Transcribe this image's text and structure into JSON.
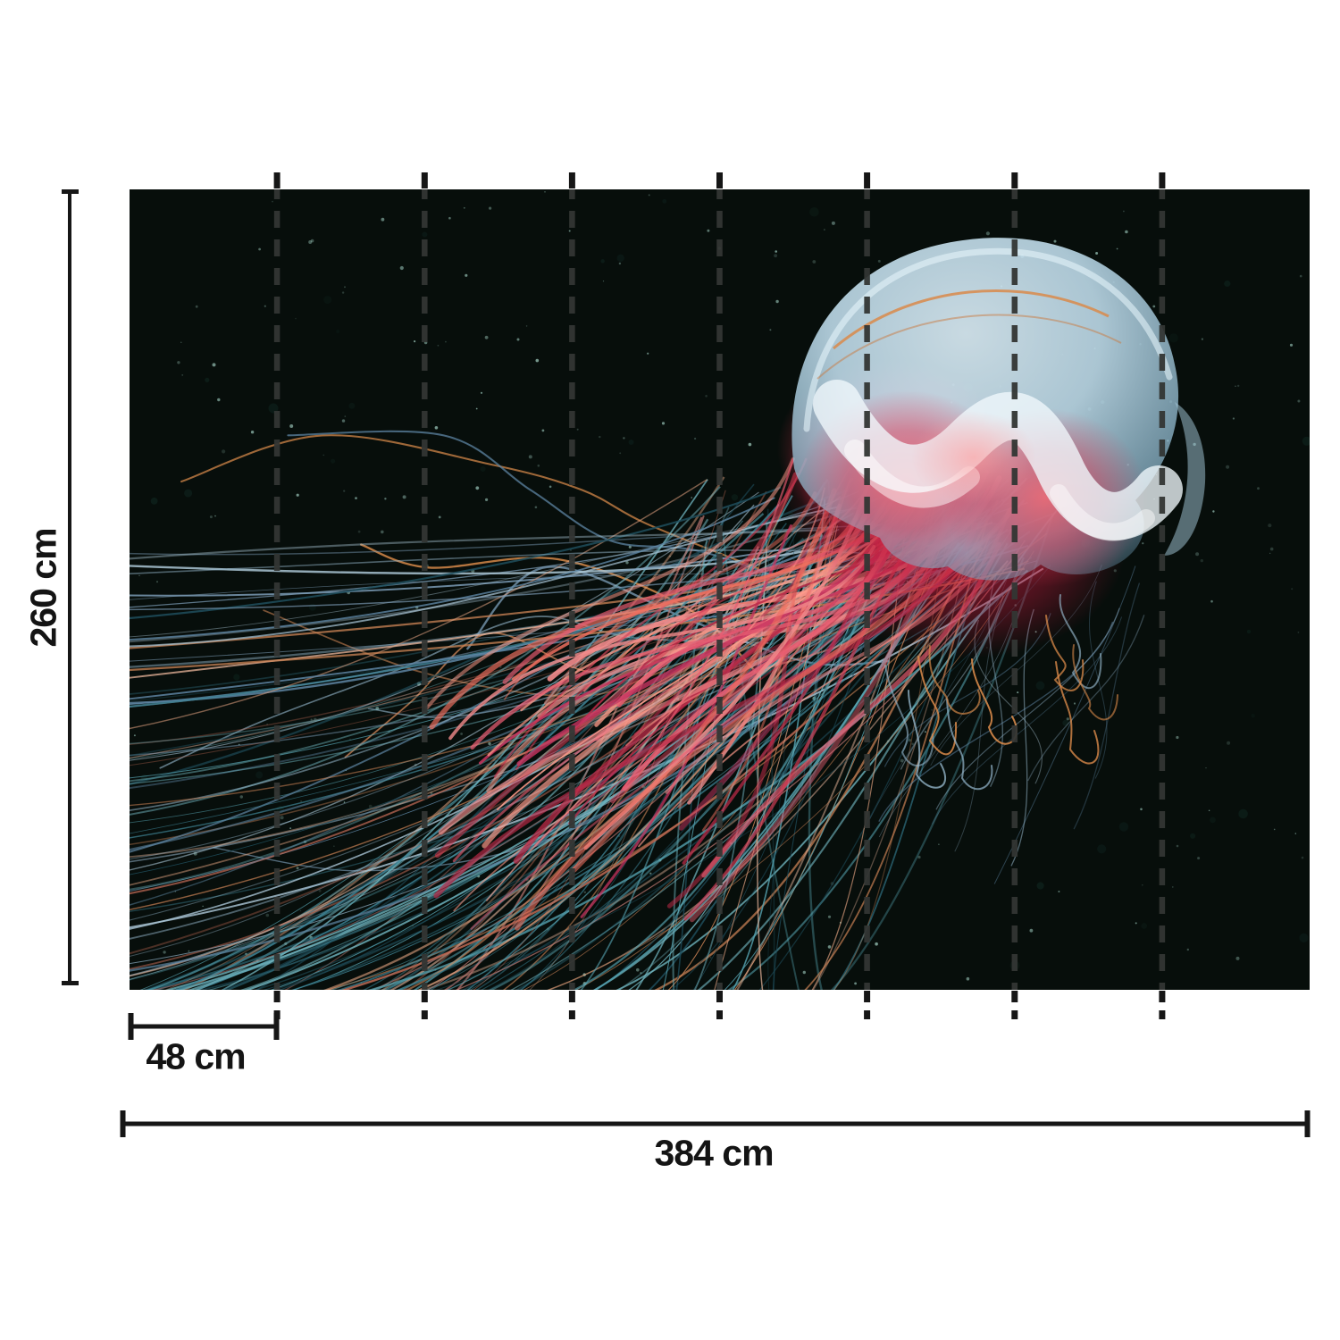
{
  "diagram": {
    "height_label": "260 cm",
    "panel_width_label": "48 cm",
    "total_width_label": "384 cm",
    "panel_count": 8,
    "dimension_color": "#161616"
  },
  "artwork": {
    "subject": "lion's mane jellyfish on dark water",
    "background": "#070e0b",
    "speckle_color": "200,255,240",
    "bell_dome_colors": [
      "#d9ebf4",
      "#bcd9e8",
      "#8fb9cf",
      "#6d9cb6"
    ],
    "bell_fold_color": "#f1f9fc",
    "glow_red": "#ff5a66",
    "glow_crimson": "#d41f44",
    "glow_bright": "#ff9d9d",
    "rim_orange": "#d98a4a",
    "tentacle_teal": [
      "#2f6f80",
      "#3e8496",
      "#55a2b0",
      "#1f4f5e",
      "#6fb3bd"
    ],
    "tentacle_slate": [
      "#7fa0bb",
      "#93b4c9",
      "#5e86a4",
      "#a9c4d4"
    ],
    "tentacle_warm": [
      "#cf8557",
      "#e2a381",
      "#c06a55",
      "#e8b49a",
      "#b9746f"
    ],
    "oral_arm_colors": [
      "#d63c55",
      "#e85d72",
      "#b92a47",
      "#f28b8b",
      "#c73560",
      "#ef6f5f",
      "#ff9b8a"
    ],
    "divider_color": "#333634"
  }
}
